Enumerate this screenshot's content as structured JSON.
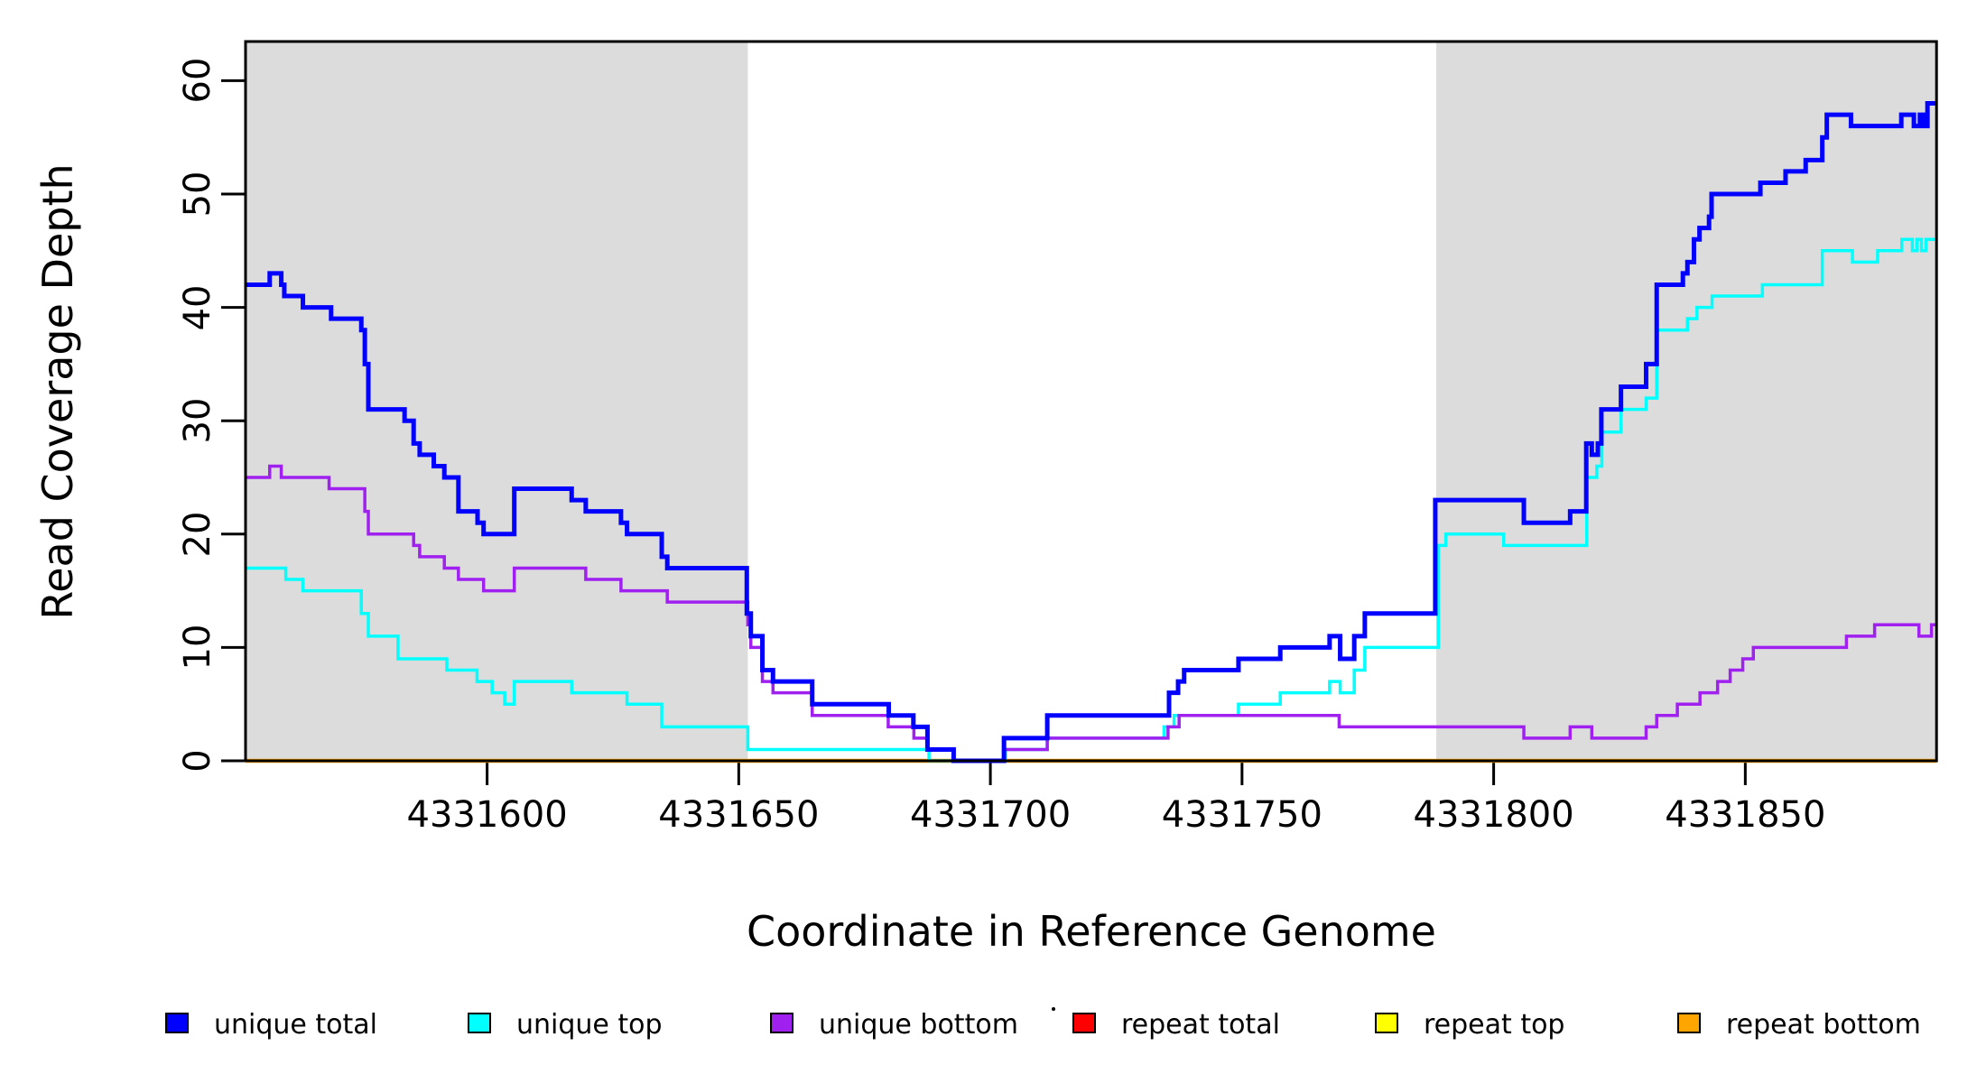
{
  "figure": {
    "x_axis_title": "Coordinate in Reference Genome",
    "y_axis_title": "Read Coverage Depth"
  },
  "chart_data": {
    "type": "line",
    "line_style": "step",
    "title": "",
    "xlabel": "Coordinate in Reference Genome",
    "ylabel": "Read Coverage Depth",
    "xlim": [
      4331552,
      4331888
    ],
    "ylim": [
      0,
      63.5
    ],
    "x_ticks": [
      4331600,
      4331650,
      4331700,
      4331750,
      4331800,
      4331850
    ],
    "y_ticks": [
      0,
      10,
      20,
      30,
      40,
      50,
      60
    ],
    "grid": false,
    "legend_position": "bottom",
    "background_color": "#ffffff",
    "shade_color": "#DCDCDC",
    "shaded_regions": [
      {
        "x0": 4331552,
        "x1": 4331651.8
      },
      {
        "x0": 4331788.6,
        "x1": 4331888
      }
    ],
    "draw_order": [
      3,
      4,
      5,
      1,
      2,
      0
    ],
    "series": [
      {
        "name": "unique total",
        "color": "#0000FF",
        "line_width": 5,
        "steps": [
          [
            4331552,
            42
          ],
          [
            4331556.8,
            43
          ],
          [
            4331559.1,
            42
          ],
          [
            4331559.7,
            41
          ],
          [
            4331563.4,
            40
          ],
          [
            4331569,
            39
          ],
          [
            4331575,
            38
          ],
          [
            4331575.7,
            35
          ],
          [
            4331576.4,
            31
          ],
          [
            4331583.6,
            30
          ],
          [
            4331585.4,
            28
          ],
          [
            4331586.6,
            27
          ],
          [
            4331589.4,
            26
          ],
          [
            4331591.5,
            25
          ],
          [
            4331594.3,
            22
          ],
          [
            4331598.1,
            21
          ],
          [
            4331599.3,
            20
          ],
          [
            4331605.4,
            24
          ],
          [
            4331616.8,
            23
          ],
          [
            4331619.6,
            22
          ],
          [
            4331626.6,
            21
          ],
          [
            4331627.8,
            20
          ],
          [
            4331634.7,
            18
          ],
          [
            4331635.8,
            17
          ],
          [
            4331651.6,
            13
          ],
          [
            4331652.4,
            11
          ],
          [
            4331654.7,
            8
          ],
          [
            4331656.8,
            7
          ],
          [
            4331664.6,
            5
          ],
          [
            4331679.8,
            4
          ],
          [
            4331684.7,
            3
          ],
          [
            4331687.5,
            1
          ],
          [
            4331692.7,
            0
          ],
          [
            4331702.7,
            2
          ],
          [
            4331711.3,
            4
          ],
          [
            4331735.5,
            6
          ],
          [
            4331737.3,
            7
          ],
          [
            4331738.5,
            8
          ],
          [
            4331749.3,
            9
          ],
          [
            4331757.6,
            10
          ],
          [
            4331767.4,
            11
          ],
          [
            4331769.5,
            9
          ],
          [
            4331772.3,
            11
          ],
          [
            4331774.4,
            13
          ],
          [
            4331788.4,
            23
          ],
          [
            4331806,
            21
          ],
          [
            4331815.2,
            22
          ],
          [
            4331818.4,
            28
          ],
          [
            4331819.5,
            27
          ],
          [
            4331820.7,
            28
          ],
          [
            4331821.4,
            31
          ],
          [
            4331825.3,
            33
          ],
          [
            4331830.3,
            35
          ],
          [
            4331832.4,
            42
          ],
          [
            4331837.6,
            43
          ],
          [
            4331838.5,
            44
          ],
          [
            4331839.8,
            46
          ],
          [
            4331840.9,
            47
          ],
          [
            4331842.8,
            48
          ],
          [
            4331843.3,
            50
          ],
          [
            4331853,
            51
          ],
          [
            4331858,
            52
          ],
          [
            4331862,
            53
          ],
          [
            4331865.3,
            55
          ],
          [
            4331866.2,
            57
          ],
          [
            4331871,
            56
          ],
          [
            4331881,
            57
          ],
          [
            4331883.5,
            56
          ],
          [
            4331884.7,
            57
          ],
          [
            4331885.6,
            56
          ],
          [
            4331886.2,
            58
          ]
        ]
      },
      {
        "name": "unique top",
        "color": "#00FFFF",
        "line_width": 3.5,
        "steps": [
          [
            4331552,
            17
          ],
          [
            4331560,
            16
          ],
          [
            4331563.4,
            15
          ],
          [
            4331575,
            13
          ],
          [
            4331576.4,
            11
          ],
          [
            4331582.3,
            9
          ],
          [
            4331592,
            8
          ],
          [
            4331598,
            7
          ],
          [
            4331601,
            6
          ],
          [
            4331603.5,
            5
          ],
          [
            4331605.4,
            7
          ],
          [
            4331616.8,
            6
          ],
          [
            4331627.8,
            5
          ],
          [
            4331634.7,
            3
          ],
          [
            4331651.8,
            1
          ],
          [
            4331687.8,
            0
          ],
          [
            4331703,
            1
          ],
          [
            4331711.3,
            2
          ],
          [
            4331734.5,
            3
          ],
          [
            4331736.5,
            4
          ],
          [
            4331749.3,
            5
          ],
          [
            4331757.6,
            6
          ],
          [
            4331767.4,
            7
          ],
          [
            4331769.5,
            6
          ],
          [
            4331772.3,
            8
          ],
          [
            4331774.4,
            10
          ],
          [
            4331789,
            19
          ],
          [
            4331790.5,
            20
          ],
          [
            4331802,
            19
          ],
          [
            4331818.5,
            25
          ],
          [
            4331820.5,
            26
          ],
          [
            4331821.5,
            29
          ],
          [
            4331825.3,
            31
          ],
          [
            4331830.3,
            32
          ],
          [
            4331832.4,
            38
          ],
          [
            4331838.5,
            39
          ],
          [
            4331840.4,
            40
          ],
          [
            4331843.4,
            41
          ],
          [
            4331853.4,
            42
          ],
          [
            4331865.3,
            45
          ],
          [
            4331871.3,
            44
          ],
          [
            4331876.3,
            45
          ],
          [
            4331881.1,
            46
          ],
          [
            4331883.2,
            45
          ],
          [
            4331884.1,
            46
          ],
          [
            4331885,
            45
          ],
          [
            4331885.9,
            46
          ]
        ]
      },
      {
        "name": "unique bottom",
        "color": "#A020F0",
        "line_width": 3.5,
        "steps": [
          [
            4331552,
            25
          ],
          [
            4331556.8,
            26
          ],
          [
            4331559.1,
            25
          ],
          [
            4331568.6,
            24
          ],
          [
            4331575.7,
            22
          ],
          [
            4331576.4,
            20
          ],
          [
            4331585.4,
            19
          ],
          [
            4331586.6,
            18
          ],
          [
            4331591.5,
            17
          ],
          [
            4331594.3,
            16
          ],
          [
            4331599.3,
            15
          ],
          [
            4331605.4,
            17
          ],
          [
            4331619.6,
            16
          ],
          [
            4331626.6,
            15
          ],
          [
            4331635.8,
            14
          ],
          [
            4331651.8,
            12
          ],
          [
            4331652.4,
            10
          ],
          [
            4331654.7,
            7
          ],
          [
            4331656.8,
            6
          ],
          [
            4331664.6,
            4
          ],
          [
            4331679.7,
            3
          ],
          [
            4331684.8,
            2
          ],
          [
            4331687.5,
            1
          ],
          [
            4331692.7,
            0
          ],
          [
            4331702.7,
            1
          ],
          [
            4331711.3,
            2
          ],
          [
            4331735.3,
            3
          ],
          [
            4331737.5,
            4
          ],
          [
            4331769.3,
            3
          ],
          [
            4331806,
            2
          ],
          [
            4331815.2,
            3
          ],
          [
            4331819.5,
            2
          ],
          [
            4331830.3,
            3
          ],
          [
            4331832.4,
            4
          ],
          [
            4331836.5,
            5
          ],
          [
            4331841,
            6
          ],
          [
            4331844.5,
            7
          ],
          [
            4331847,
            8
          ],
          [
            4331849.5,
            9
          ],
          [
            4331851.6,
            10
          ],
          [
            4331870.1,
            11
          ],
          [
            4331875.7,
            12
          ],
          [
            4331884.5,
            11
          ],
          [
            4331887,
            12
          ]
        ]
      },
      {
        "name": "repeat total",
        "color": "#FF0000",
        "line_width": 3,
        "steps": [
          [
            4331552,
            0
          ]
        ]
      },
      {
        "name": "repeat top",
        "color": "#FFFF00",
        "line_width": 3,
        "steps": [
          [
            4331552,
            0
          ]
        ]
      },
      {
        "name": "repeat bottom",
        "color": "#FFA500",
        "line_width": 4.5,
        "steps": [
          [
            4331552,
            0
          ]
        ]
      }
    ]
  },
  "legend": {
    "items": [
      {
        "label": "unique total",
        "color": "#0000FF"
      },
      {
        "label": "unique top",
        "color": "#00FFFF"
      },
      {
        "label": "unique bottom",
        "color": "#A020F0"
      },
      {
        "label": "repeat total",
        "color": "#FF0000"
      },
      {
        "label": "repeat top",
        "color": "#FFFF00"
      },
      {
        "label": "repeat bottom",
        "color": "#FFA500"
      }
    ]
  }
}
